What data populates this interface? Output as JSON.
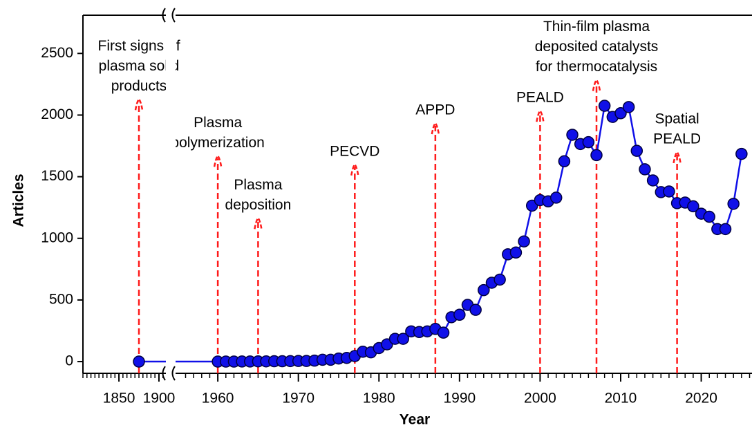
{
  "chart_data": {
    "type": "line",
    "xlabel": "Year",
    "ylabel": "Articles",
    "x": [
      1875,
      1960,
      1961,
      1962,
      1963,
      1964,
      1965,
      1966,
      1967,
      1968,
      1969,
      1970,
      1971,
      1972,
      1973,
      1974,
      1975,
      1976,
      1977,
      1978,
      1979,
      1980,
      1981,
      1982,
      1983,
      1984,
      1985,
      1986,
      1987,
      1988,
      1989,
      1990,
      1991,
      1992,
      1993,
      1994,
      1995,
      1996,
      1997,
      1998,
      1999,
      2000,
      2001,
      2002,
      2003,
      2004,
      2005,
      2006,
      2007,
      2008,
      2009,
      2010,
      2011,
      2012,
      2013,
      2014,
      2015,
      2016,
      2017,
      2018,
      2019,
      2020,
      2021,
      2022,
      2023,
      2024,
      2025
    ],
    "series": [
      {
        "name": "Articles",
        "color": "#1010e8",
        "values": [
          0,
          0,
          0,
          0,
          1,
          1,
          2,
          2,
          3,
          3,
          4,
          5,
          5,
          8,
          15,
          15,
          25,
          30,
          45,
          80,
          75,
          110,
          140,
          185,
          185,
          245,
          240,
          245,
          265,
          235,
          360,
          380,
          460,
          420,
          580,
          640,
          665,
          870,
          885,
          975,
          1265,
          1310,
          1300,
          1330,
          1625,
          1840,
          1765,
          1780,
          1675,
          2075,
          1985,
          2015,
          2065,
          1710,
          1560,
          1470,
          1375,
          1380,
          1285,
          1290,
          1260,
          1200,
          1175,
          1075,
          1075,
          1280,
          1685
        ]
      }
    ],
    "xlim": [
      [
        1805,
        1913
      ],
      [
        1955.1,
        2026.3
      ]
    ],
    "xticks": [
      1850,
      1900,
      1960,
      1970,
      1980,
      1990,
      2000,
      2010,
      2020
    ],
    "minor_xtick_step": [
      5,
      1
    ],
    "ylim": [
      -95,
      2810
    ],
    "yticks": [
      0,
      500,
      1000,
      1500,
      2000,
      2500
    ],
    "annotations": [
      {
        "text": [
          "First signs of",
          "plasma solid",
          "products"
        ],
        "x": 1875,
        "y": 2130
      },
      {
        "text": [
          "Plasma",
          "polymerization"
        ],
        "x": 1960,
        "y": 1670
      },
      {
        "text": [
          "Plasma",
          "deposition"
        ],
        "x": 1965,
        "y": 1165
      },
      {
        "text": [
          "PECVD"
        ],
        "x": 1977,
        "y": 1600
      },
      {
        "text": [
          "APPD"
        ],
        "x": 1987,
        "y": 1935
      },
      {
        "text": [
          "PEALD"
        ],
        "x": 2000,
        "y": 2035
      },
      {
        "text": [
          "Thin-film plasma",
          "deposited catalysts",
          "for thermocatalysis"
        ],
        "x": 2007,
        "y": 2285
      },
      {
        "text": [
          "Spatial",
          "PEALD"
        ],
        "x": 2017,
        "y": 1700
      }
    ],
    "annotation_color": "#ff1a1a"
  }
}
